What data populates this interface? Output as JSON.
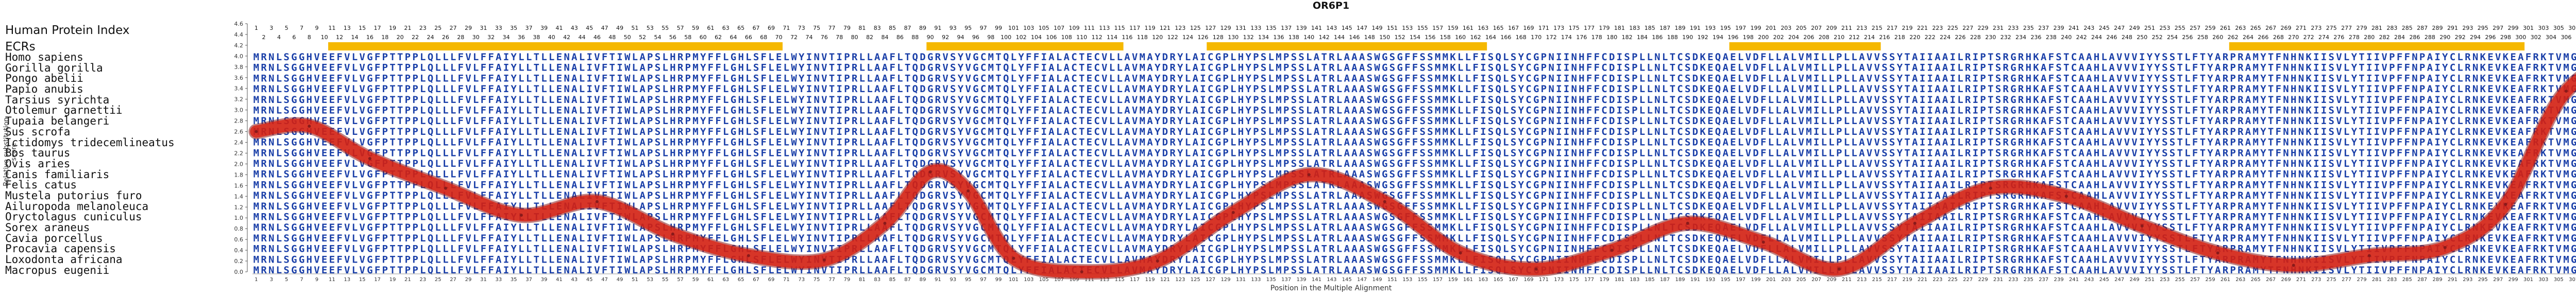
{
  "title": "OR6P1",
  "labels": {
    "hpi": "Human Protein Index",
    "ecrs": "ECRs",
    "y_axis": "Relative substitution score",
    "x_axis": "Position in the Multiple Alignment"
  },
  "species": [
    "Homo sapiens",
    "Gorilla gorilla",
    "Pongo abelii",
    "Papio anubis",
    "Tarsius syrichta",
    "Otolemur garnettii",
    "Tupaia belangeri",
    "Sus scrofa",
    "Ictidomys tridecemlineatus",
    "Bos taurus",
    "Ovis aries",
    "Canis familiaris",
    "Felis catus",
    "Mustela putorius furo",
    "Ailuropoda melanoleuca",
    "Oryctolagus cuniculus",
    "Sorex araneus",
    "Cavia porcellus",
    "Procavia capensis",
    "Loxodonta africana",
    "Macropus eugenii"
  ],
  "sequences": [
    "MRNLSGGHVEEFVLVGFPTTPPLQLLLFVLFFAIYLLTLLENALIVFTIWLAPSLHRPMYFFLGHLSFLELWYINVTIPRLLAAFLTQDGRVSYVGCMTQLYFFIALACTECVLLAVMAYDRYLAICGPLHYPSLMPSSLATRLAAASWGSGFFSSMMKLLFISQLSYCGPNIINHFFCDISPLLNLTCSDKEQAELVDFLLALVMILLPLLAVVSSYTAIIAAILRIPTSRGRHKAFSTCAAHLAVVVIYYSSTLFTYARPRAMYTFNHNKIISVLYTIIVPFFNPAIYCLRNKEVKEAFRKTVMGRCHYPRDVQD",
    "MRNLSGGHVEEFVLVGFPTTPPLQLLLFVLFFAIYLLTLLENALIVFTIWLAPSLHRPMYFFLGHLSFLELWYINVTIPRLLAAFLTQDGRVSYVGCMTQLYFFIALACTECVLLAVMAYDRYLAICGPLHYPSLMPSSLATRLAAASWGSGFFSSMMKLLFISQLSYCGPNIINHFFCDISPLLNLTCSDKEQAELVDFLLALVMILLPLLAVVSSYTAIIAAILRIPTSRGRHKAFSTCAAHLAVVVIYYSSTLFTYARPRAMYTFNHNKIISVLYTIIVPFFNPAIYCLRNKEVKEAFRKTVMGRCHYPRDVQD",
    "MRNLSGGHVEEFVLVGFPTTPPLQLLLFVLFFAIYLLTLLENALIVFTIWLAPSLHRPMYFFLGHLSFLELWYINVTIPRLLAAFLTQDGRVSYVGCMTQLYFFIALACTECVLLAVMAYDRYLAICGPLHYPSLMPSSLATRLAAASWGSGFFSSMMKLLFISQLSYCGPNIINHFFCDISPLLNLTCSDKEQAELVDFLLALVMILLPLLAVVSSYTAIIAAILRIPTSRGRHKAFSTCAAHLAVVVIYYSSTLFTYARPRAMYTFNHNKIISVLYTIIVPFFNPAIYCLRNKEVKEAFRKTVMGRCHYPRDVQD",
    "MRNLSGGHVEEFVLVGFPTTPPLQLLLFVLFFAIYLLTLLENALIVFTIWLAPSLHRPMYFFLGHLSFLELWYINVTIPRLLAAFLTQDGRVSYVGCMTQLYFFIALACTECVLLAVMAYDRYLAICGPLHYPSLMPSSLATRLAAASWGSGFFSSMMKLLFISQLSYCGPNIINHFFCDISPLLNLTCSDKEQAELVDFLLALVMILLPLLAVVSSYTAIIAAILRIPTSRGRHKAFSTCAAHLAVVVIYYSSTLFTYARPRAMYTFNHNKIISVLYTIIVPFFNPAIYCLRNKEVKEAFRKTVMGRCHYPRDVQD",
    "MRNLSGGHVEEFVLVGFPTTPPLQLLLFVLFFAIYLLTLLENALIVFTIWLAPSLHRPMYFFLGHLSFLELWYINVTIPRLLAAFLTQDGRVSYVGCMTQLYFFIALACTECVLLAVMAYDRYLAICGPLHYPSLMPSSLATRLAAASWGSGFFSSMMKLLFISQLSYCGPNIINHFFCDISPLLNLTCSDKEQAELVDFLLALVMILLPLLAVVSSYTAIIAAILRIPTSRGRHKAFSTCAAHLAVVVIYYSSTLFTYARPRAMYTFNHNKIISVLYTIIVPFFNPAIYCLRNKEVKEAFRKTVMGRCHYPRDVQD",
    "MRNLSGGHVEEFVLVGFPTTPPLQLLLFVLFFAIYLLTLLENALIVFTIWLAPSLHRPMYFFLGHLSFLELWYINVTIPRLLAAFLTQDGRVSYVGCMTQLYFFIALACTECVLLAVMAYDRYLAICGPLHYPSLMPSSLATRLAAASWGSGFFSSMMKLLFISQLSYCGPNIINHFFCDISPLLNLTCSDKEQAELVDFLLALVMILLPLLAVVSSYTAIIAAILRIPTSRGRHKAFSTCAAHLAVVVIYYSSTLFTYARPRAMYTFNHNKIISVLYTIIVPFFNPAIYCLRNKEVKEAFRKTVMGRCHYPRDVQD",
    "MRNLSGGHVEEFVLVGFPTTPPLQLLLFVLFFAIYLLTLLENALIVFTIWLAPSLHRPMYFFLGHLSFLELWYINVTIPRLLAAFLTQDGRVSYVGCMTQLYFFIALACTECVLLAVMAYDRYLAICGPLHYPSLMPSSLATRLAAASWGSGFFSSMMKLLFISQLSYCGPNIINHFFCDISPLLNLTCSDKEQAELVDFLLALVMILLPLLAVVSSYTAIIAAILRIPTSRGRHKAFSTCAAHLAVVVIYYSSTLFTYARPRAMYTFNHNKIISVLYTIIVPFFNPAIYCLRNKEVKEAFRKTVMGRCHYPRDVQD",
    "MRNLSGGHVEEFVLVGFPTTPPLQLLLFVLFFAIYLLTLLENALIVFTIWLAPSLHRPMYFFLGHLSFLELWYINVTIPRLLAAFLTQDGRVSYVGCMTQLYFFIALACTECVLLAVMAYDRYLAICGPLHYPSLMPSSLATRLAAASWGSGFFSSMMKLLFISQLSYCGPNIINHFFCDISPLLNLTCSDKEQAELVDFLLALVMILLPLLAVVSSYTAIIAAILRIPTSRGRHKAFSTCAAHLAVVVIYYSSTLFTYARPRAMYTFNHNKIISVLYTIIVPFFNPAIYCLRNKEVKEAFRKTVMGRCHYPRDVQD",
    "MRNLSGGHVEEFVLVGFPTTPPLQLLLFVLFFAIYLLTLLENALIVFTIWLAPSLHRPMYFFLGHLSFLELWYINVTIPRLLAAFLTQDGRVSYVGCMTQLYFFIALACTECVLLAVMAYDRYLAICGPLHYPSLMPSSLATRLAAASWGSGFFSSMMKLLFISQLSYCGPNIINHFFCDISPLLNLTCSDKEQAELVDFLLALVMILLPLLAVVSSYTAIIAAILRIPTSRGRHKAFSTCAAHLAVVVIYYSSTLFTYARPRAMYTFNHNKIISVLYTIIVPFFNPAIYCLRNKEVKEAFRKTVMGRCHYPRDVQD",
    "MRNLSGGHVEEFVLVGFPTTPPLQLLLFVLFFAIYLLTLLENALIVFTIWLAPSLHRPMYFFLGHLSFLELWYINVTIPRLLAAFLTQDGRVSYVGCMTQLYFFIALACTECVLLAVMAYDRYLAICGPLHYPSLMPSSLATRLAAASWGSGFFSSMMKLLFISQLSYCGPNIINHFFCDISPLLNLTCSDKEQAELVDFLLALVMILLPLLAVVSSYTAIIAAILRIPTSRGRHKAFSTCAAHLAVVVIYYSSTLFTYARPRAMYTFNHNKIISVLYTIIVPFFNPAIYCLRNKEVKEAFRKTVMGRCHYPRDVQD",
    "MRNLSGGHVEEFVLVGFPTTPPLQLLLFVLFFAIYLLTLLENALIVFTIWLAPSLHRPMYFFLGHLSFLELWYINVTIPRLLAAFLTQDGRVSYVGCMTQLYFFIALACTECVLLAVMAYDRYLAICGPLHYPSLMPSSLATRLAAASWGSGFFSSMMKLLFISQLSYCGPNIINHFFCDISPLLNLTCSDKEQAELVDFLLALVMILLPLLAVVSSYTAIIAAILRIPTSRGRHKAFSTCAAHLAVVVIYYSSTLFTYARPRAMYTFNHNKIISVLYTIIVPFFNPAIYCLRNKEVKEAFRKTVMGRCHYPRDVQD",
    "MRNLSGGHVEEFVLVGFPTTPPLQLLLFVLFFAIYLLTLLENALIVFTIWLAPSLHRPMYFFLGHLSFLELWYINVTIPRLLAAFLTQDGRVSYVGCMTQLYFFIALACTECVLLAVMAYDRYLAICGPLHYPSLMPSSLATRLAAASWGSGFFSSMMKLLFISQLSYCGPNIINHFFCDISPLLNLTCSDKEQAELVDFLLALVMILLPLLAVVSSYTAIIAAILRIPTSRGRHKAFSTCAAHLAVVVIYYSSTLFTYARPRAMYTFNHNKIISVLYTIIVPFFNPAIYCLRNKEVKEAFRKTVMGRCHYPRDVQD",
    "MRNLSGGHVEEFVLVGFPTTPPLQLLLFVLFFAIYLLTLLENALIVFTIWLAPSLHRPMYFFLGHLSFLELWYINVTIPRLLAAFLTQDGRVSYVGCMTQLYFFIALACTECVLLAVMAYDRYLAICGPLHYPSLMPSSLATRLAAASWGSGFFSSMMKLLFISQLSYCGPNIINHFFCDISPLLNLTCSDKEQAELVDFLLALVMILLPLLAVVSSYTAIIAAILRIPTSRGRHKAFSTCAAHLAVVVIYYSSTLFTYARPRAMYTFNHNKIISVLYTIIVPFFNPAIYCLRNKEVKEAFRKTVMGRCHYPRDVQD",
    "MRNLSGGHVEEFVLVGFPTTPPLQLLLFVLFFAIYLLTLLENALIVFTIWLAPSLHRPMYFFLGHLSFLELWYINVTIPRLLAAFLTQDGRVSYVGCMTQLYFFIALACTECVLLAVMAYDRYLAICGPLHYPSLMPSSLATRLAAASWGSGFFSSMMKLLFISQLSYCGPNIINHFFCDISPLLNLTCSDKEQAELVDFLLALVMILLPLLAVVSSYTAIIAAILRIPTSRGRHKAFSTCAAHLAVVVIYYSSTLFTYARPRAMYTFNHNKIISVLYTIIVPFFNPAIYCLRNKEVKEAFRKTVMGRCHYPRDVQD",
    "MRNLSGGHVEEFVLVGFPTTPPLQLLLFVLFFAIYLLTLLENALIVFTIWLAPSLHRPMYFFLGHLSFLELWYINVTIPRLLAAFLTQDGRVSYVGCMTQLYFFIALACTECVLLAVMAYDRYLAICGPLHYPSLMPSSLATRLAAASWGSGFFSSMMKLLFISQLSYCGPNIINHFFCDISPLLNLTCSDKEQAELVDFLLALVMILLPLLAVVSSYTAIIAAILRIPTSRGRHKAFSTCAAHLAVVVIYYSSTLFTYARPRAMYTFNHNKIISVLYTIIVPFFNPAIYCLRNKEVKEAFRKTVMGRCHYPRDVQD",
    "MRNLSGGHVEEFVLVGFPTTPPLQLLLFVLFFAIYLLTLLENALIVFTIWLAPSLHRPMYFFLGHLSFLELWYINVTIPRLLAAFLTQDGRVSYVGCMTQLYFFIALACTECVLLAVMAYDRYLAICGPLHYPSLMPSSLATRLAAASWGSGFFSSMMKLLFISQLSYCGPNIINHFFCDISPLLNLTCSDKEQAELVDFLLALVMILLPLLAVVSSYTAIIAAILRIPTSRGRHKAFSTCAAHLAVVVIYYSSTLFTYARPRAMYTFNHNKIISVLYTIIVPFFNPAIYCLRNKEVKEAFRKTVMGRCHYPRDVQD",
    "MRNLSGGHVEEFVLVGFPTTPPLQLLLFVLFFAIYLLTLLENALIVFTIWLAPSLHRPMYFFLGHLSFLELWYINVTIPRLLAAFLTQDGRVSYVGCMTQLYFFIALACTECVLLAVMAYDRYLAICGPLHYPSLMPSSLATRLAAASWGSGFFSSMMKLLFISQLSYCGPNIINHFFCDISPLLNLTCSDKEQAELVDFLLALVMILLPLLAVVSSYTAIIAAILRIPTSRGRHKAFSTCAAHLAVVVIYYSSTLFTYARPRAMYTFNHNKIISVLYTIIVPFFNPAIYCLRNKEVKEAFRKTVMGRCHYPRDVQD",
    "MRNLSGGHVEEFVLVGFPTTPPLQLLLFVLFFAIYLLTLLENALIVFTIWLAPSLHRPMYFFLGHLSFLELWYINVTIPRLLAAFLTQDGRVSYVGCMTQLYFFIALACTECVLLAVMAYDRYLAICGPLHYPSLMPSSLATRLAAASWGSGFFSSMMKLLFISQLSYCGPNIINHFFCDISPLLNLTCSDKEQAELVDFLLALVMILLPLLAVVSSYTAIIAAILRIPTSRGRHKAFSTCAAHLAVVVIYYSSTLFTYARPRAMYTFNHNKIISVLYTIIVPFFNPAIYCLRNKEVKEAFRKTVMGRCHYPRDVQD",
    "MRNLSGGHVEEFVLVGFPTTPPLQLLLFVLFFAIYLLTLLENALIVFTIWLAPSLHRPMYFFLGHLSFLELWYINVTIPRLLAAFLTQDGRVSYVGCMTQLYFFIALACTECVLLAVMAYDRYLAICGPLHYPSLMPSSLATRLAAASWGSGFFSSMMKLLFISQLSYCGPNIINHFFCDISPLLNLTCSDKEQAELVDFLLALVMILLPLLAVVSSYTAIIAAILRIPTSRGRHKAFSTCAAHLAVVVIYYSSTLFTYARPRAMYTFNHNKIISVLYTIIVPFFNPAIYCLRNKEVKEAFRKTVMGRCHYPRDVQD",
    "MRNLSGGHVEEFVLVGFPTTPPLQLLLFVLFFAIYLLTLLENALIVFTIWLAPSLHRPMYFFLGHLSFLELWYINVTIPRLLAAFLTQDGRVSYVGCMTQLYFFIALACTECVLLAVMAYDRYLAICGPLHYPSLMPSSLATRLAAASWGSGFFSSMMKLLFISQLSYCGPNIINHFFCDISPLLNLTCSDKEQAELVDFLLALVMILLPLLAVVSSYTAIIAAILRIPTSRGRHKAFSTCAAHLAVVVIYYSSTLFTYARPRAMYTFNHNKIISVLYTIIVPFFNPAIYCLRNKEVKEAFRKTVMGRCHYPRDVQD",
    "MRNLSGGHVEEFVLVGFPTTPPLQLLLFVLFFAIYLLTLLENALIVFTIWLAPSLHRPMYFFLGHLSFLELWYINVTIPRLLAAFLTQDGRVSYVGCMTQLYFFIALACTECVLLAVMAYDRYLAICGPLHYPSLMPSSLATRLAAASWGSGFFSSMMKLLFISQLSYCGPNIINHFFCDISPLLNLTCSDKEQAELVDFLLALVMILLPLLAVVSSYTAIIAAILRIPTSRGRHKAFSTCAAHLAVVVIYYSSTLFTYARPRAMYTFNHNKIISVLYTIIVPFFNPAIYCLRNKEVKEAFRKTVMGRCHYPRDVQD"
  ],
  "alignment": {
    "length": 317,
    "hpi_length": 317
  },
  "ecr_regions": [
    [
      11,
      70
    ],
    [
      90,
      115
    ],
    [
      127,
      163
    ],
    [
      196,
      215
    ],
    [
      262,
      300
    ]
  ],
  "yaxis_ticks": [
    "0.0",
    "0.2",
    "0.4",
    "0.6",
    "0.8",
    "1.0",
    "1.2",
    "1.4",
    "1.6",
    "1.8",
    "2.0",
    "2.2",
    "2.4",
    "2.6",
    "2.8",
    "3.0",
    "3.2",
    "3.4",
    "3.6",
    "3.8",
    "4.0",
    "4.2",
    "4.4",
    "4.6"
  ],
  "colors": {
    "ecr_box": "#f5b800",
    "conserved": "#1a3fa8",
    "variable": "#4f98c9",
    "semi": "#7fb34a",
    "curve": "#dd2211",
    "curve_edge": "#8a1a1a"
  },
  "chart_data": {
    "type": "line",
    "title": "OR6P1",
    "xlabel": "Position in the Multiple Alignment",
    "ylabel": "Relative substitution score",
    "ylim": [
      0,
      4.6
    ],
    "xlim": [
      1,
      317
    ],
    "x": [
      1,
      8,
      16,
      26,
      36,
      46,
      56,
      66,
      76,
      84,
      90,
      95,
      101,
      110,
      120,
      130,
      140,
      150,
      160,
      170,
      180,
      190,
      200,
      210,
      220,
      230,
      240,
      250,
      260,
      270,
      280,
      290,
      298,
      306,
      317
    ],
    "y": [
      2.6,
      2.7,
      2.1,
      1.55,
      1.05,
      1.3,
      0.7,
      0.3,
      0.22,
      0.9,
      1.85,
      1.5,
      0.25,
      0.0,
      0.2,
      1.1,
      1.8,
      1.3,
      0.35,
      0.05,
      0.4,
      0.9,
      0.55,
      0.05,
      0.9,
      1.55,
      1.4,
      0.85,
      0.35,
      0.12,
      0.3,
      0.45,
      1.25,
      3.35,
      4.25
    ]
  }
}
